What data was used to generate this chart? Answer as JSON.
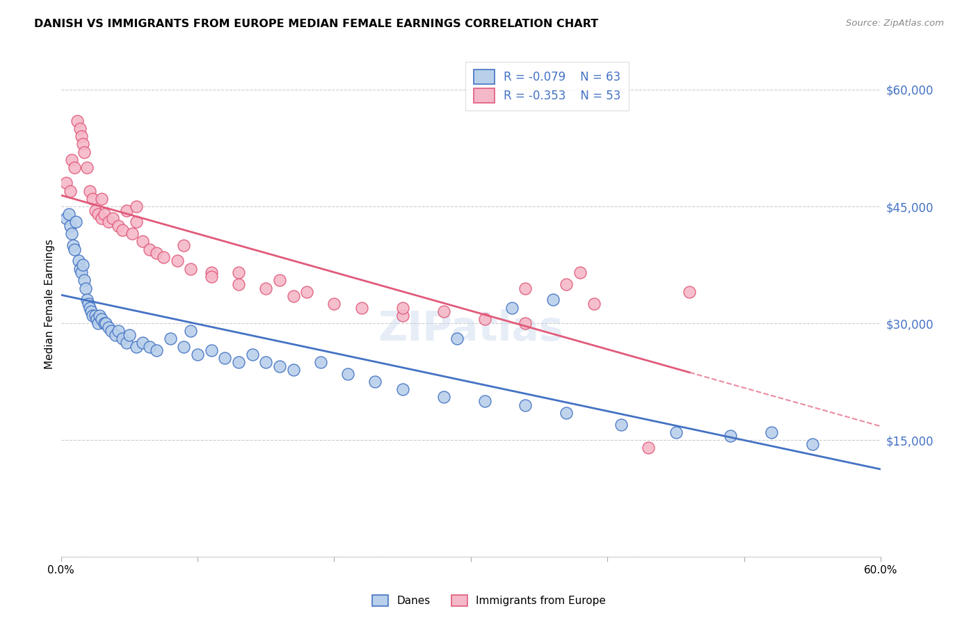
{
  "title": "DANISH VS IMMIGRANTS FROM EUROPE MEDIAN FEMALE EARNINGS CORRELATION CHART",
  "source": "Source: ZipAtlas.com",
  "ylabel": "Median Female Earnings",
  "yticks": [
    0,
    15000,
    30000,
    45000,
    60000
  ],
  "ytick_labels": [
    "",
    "$15,000",
    "$30,000",
    "$45,000",
    "$60,000"
  ],
  "xmin": 0.0,
  "xmax": 0.6,
  "ymin": 0,
  "ymax": 65000,
  "danes_R": -0.079,
  "danes_N": 63,
  "immigrants_R": -0.353,
  "immigrants_N": 53,
  "danes_color": "#b8d0ea",
  "immigrants_color": "#f5b8c8",
  "danes_line_color": "#4472c4",
  "immigrants_line_color": "#e05a7a",
  "legend_label_danes": "Danes",
  "legend_label_immigrants": "Immigrants from Europe",
  "danes_x": [
    0.004,
    0.006,
    0.007,
    0.008,
    0.009,
    0.01,
    0.011,
    0.013,
    0.014,
    0.015,
    0.016,
    0.017,
    0.018,
    0.019,
    0.02,
    0.021,
    0.022,
    0.023,
    0.025,
    0.026,
    0.027,
    0.028,
    0.03,
    0.032,
    0.033,
    0.035,
    0.037,
    0.04,
    0.042,
    0.045,
    0.048,
    0.05,
    0.055,
    0.06,
    0.065,
    0.07,
    0.08,
    0.09,
    0.095,
    0.1,
    0.11,
    0.12,
    0.13,
    0.14,
    0.15,
    0.16,
    0.17,
    0.19,
    0.21,
    0.23,
    0.25,
    0.28,
    0.31,
    0.34,
    0.37,
    0.41,
    0.45,
    0.49,
    0.52,
    0.55,
    0.33,
    0.36,
    0.29
  ],
  "danes_y": [
    43500,
    44000,
    42500,
    41500,
    40000,
    39500,
    43000,
    38000,
    37000,
    36500,
    37500,
    35500,
    34500,
    33000,
    32500,
    32000,
    31500,
    31000,
    31000,
    30500,
    30000,
    31000,
    30500,
    30000,
    30000,
    29500,
    29000,
    28500,
    29000,
    28000,
    27500,
    28500,
    27000,
    27500,
    27000,
    26500,
    28000,
    27000,
    29000,
    26000,
    26500,
    25500,
    25000,
    26000,
    25000,
    24500,
    24000,
    25000,
    23500,
    22500,
    21500,
    20500,
    20000,
    19500,
    18500,
    17000,
    16000,
    15500,
    16000,
    14500,
    32000,
    33000,
    28000
  ],
  "immigrants_x": [
    0.004,
    0.007,
    0.008,
    0.01,
    0.012,
    0.014,
    0.015,
    0.016,
    0.017,
    0.019,
    0.021,
    0.023,
    0.025,
    0.027,
    0.03,
    0.032,
    0.035,
    0.038,
    0.042,
    0.045,
    0.048,
    0.052,
    0.055,
    0.06,
    0.065,
    0.07,
    0.075,
    0.085,
    0.095,
    0.11,
    0.13,
    0.15,
    0.17,
    0.2,
    0.22,
    0.25,
    0.28,
    0.31,
    0.34,
    0.37,
    0.03,
    0.055,
    0.09,
    0.11,
    0.13,
    0.16,
    0.18,
    0.25,
    0.34,
    0.39,
    0.43,
    0.46,
    0.38
  ],
  "immigrants_y": [
    48000,
    47000,
    51000,
    50000,
    56000,
    55000,
    54000,
    53000,
    52000,
    50000,
    47000,
    46000,
    44500,
    44000,
    43500,
    44000,
    43000,
    43500,
    42500,
    42000,
    44500,
    41500,
    43000,
    40500,
    39500,
    39000,
    38500,
    38000,
    37000,
    36500,
    35000,
    34500,
    33500,
    32500,
    32000,
    31000,
    31500,
    30500,
    30000,
    35000,
    46000,
    45000,
    40000,
    36000,
    36500,
    35500,
    34000,
    32000,
    34500,
    32500,
    14000,
    34000,
    36500
  ]
}
